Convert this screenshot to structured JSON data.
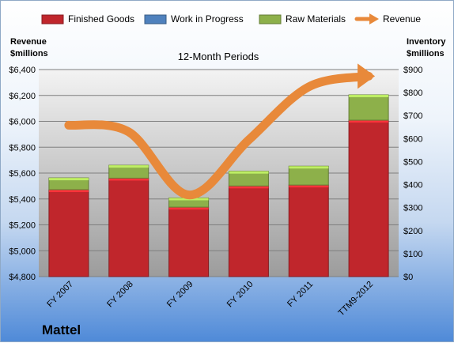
{
  "chart_data": {
    "type": "bar",
    "subtitle": "12-Month Periods",
    "company": "Mattel",
    "categories": [
      "FY 2007",
      "FY 2008",
      "FY 2009",
      "FY 2010",
      "FY 2011",
      "TTM9-2012"
    ],
    "left_axis": {
      "label_line1": "Revenue",
      "label_line2": "$millions",
      "ylim": [
        4800,
        6400
      ],
      "ticks": [
        4800,
        5000,
        5200,
        5400,
        5600,
        5800,
        6000,
        6200,
        6400
      ],
      "tick_labels": [
        "$4,800",
        "$5,000",
        "$5,200",
        "$5,400",
        "$5,600",
        "$5,800",
        "$6,000",
        "$6,200",
        "$6,400"
      ]
    },
    "right_axis": {
      "label_line1": "Inventory",
      "label_line2": "$millions",
      "ylim": [
        0,
        900
      ],
      "ticks": [
        0,
        100,
        200,
        300,
        400,
        500,
        600,
        700,
        800,
        900
      ],
      "tick_labels": [
        "$0",
        "$100",
        "$200",
        "$300",
        "$400",
        "$500",
        "$600",
        "$700",
        "$800",
        "$900"
      ]
    },
    "grid": true,
    "legend_position": "top",
    "series": [
      {
        "name": "Finished Goods",
        "kind": "bar",
        "axis": "right",
        "color": "#c0262c",
        "values": [
          378,
          428,
          302,
          394,
          398,
          680
        ]
      },
      {
        "name": "Work in Progress",
        "kind": "bar",
        "axis": "right",
        "color": "#4f81bd",
        "values": [
          0,
          0,
          0,
          0,
          0,
          0
        ]
      },
      {
        "name": "Raw Materials",
        "kind": "bar",
        "axis": "right",
        "color": "#8db04a",
        "values": [
          51,
          56,
          40,
          64,
          82,
          110
        ]
      },
      {
        "name": "Revenue",
        "kind": "line",
        "axis": "left",
        "color": "#e8893a",
        "values": [
          5970,
          5918,
          5431,
          5856,
          6266,
          6349
        ]
      }
    ]
  }
}
